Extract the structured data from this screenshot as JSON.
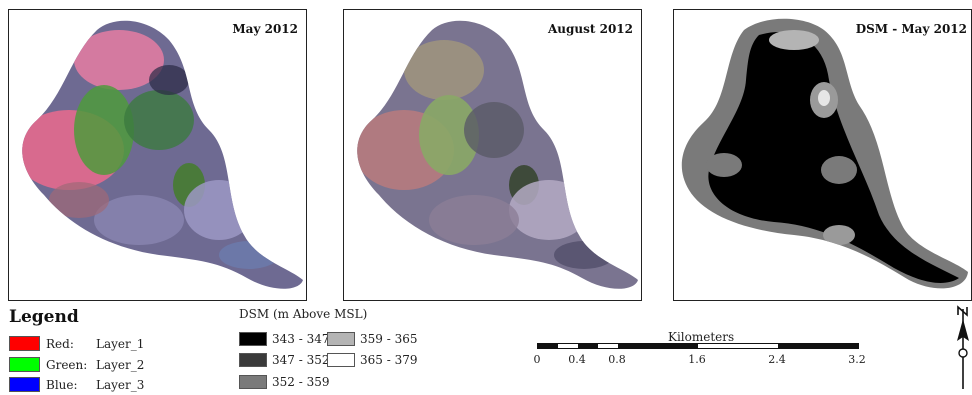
{
  "panels": [
    {
      "id": "may",
      "title": "May 2012"
    },
    {
      "id": "aug",
      "title": "August 2012"
    },
    {
      "id": "dsm",
      "title": "DSM - May 2012"
    }
  ],
  "legend": {
    "title": "Legend",
    "bands": [
      {
        "label": "Red:",
        "value": "Layer_1",
        "color": "#ff0000"
      },
      {
        "label": "Green:",
        "value": "Layer_2",
        "color": "#00ff00"
      },
      {
        "label": "Blue:",
        "value": "Layer_3",
        "color": "#0000ff"
      }
    ]
  },
  "dsm_legend": {
    "title": "DSM (m Above MSL)",
    "classes": [
      {
        "range": "343 - 347",
        "color": "#000000"
      },
      {
        "range": "347 - 352",
        "color": "#3a3a3a"
      },
      {
        "range": "352 - 359",
        "color": "#7a7a7a"
      },
      {
        "range": "359 - 365",
        "color": "#b4b4b4"
      },
      {
        "range": "365 - 379",
        "color": "#ffffff"
      }
    ]
  },
  "scale": {
    "title": "Kilometers",
    "ticks": [
      "0",
      "0.4",
      "0.8",
      "1.6",
      "2.4",
      "3.2"
    ],
    "tick_values": [
      0,
      0.4,
      0.8,
      1.6,
      2.4,
      3.2
    ]
  }
}
